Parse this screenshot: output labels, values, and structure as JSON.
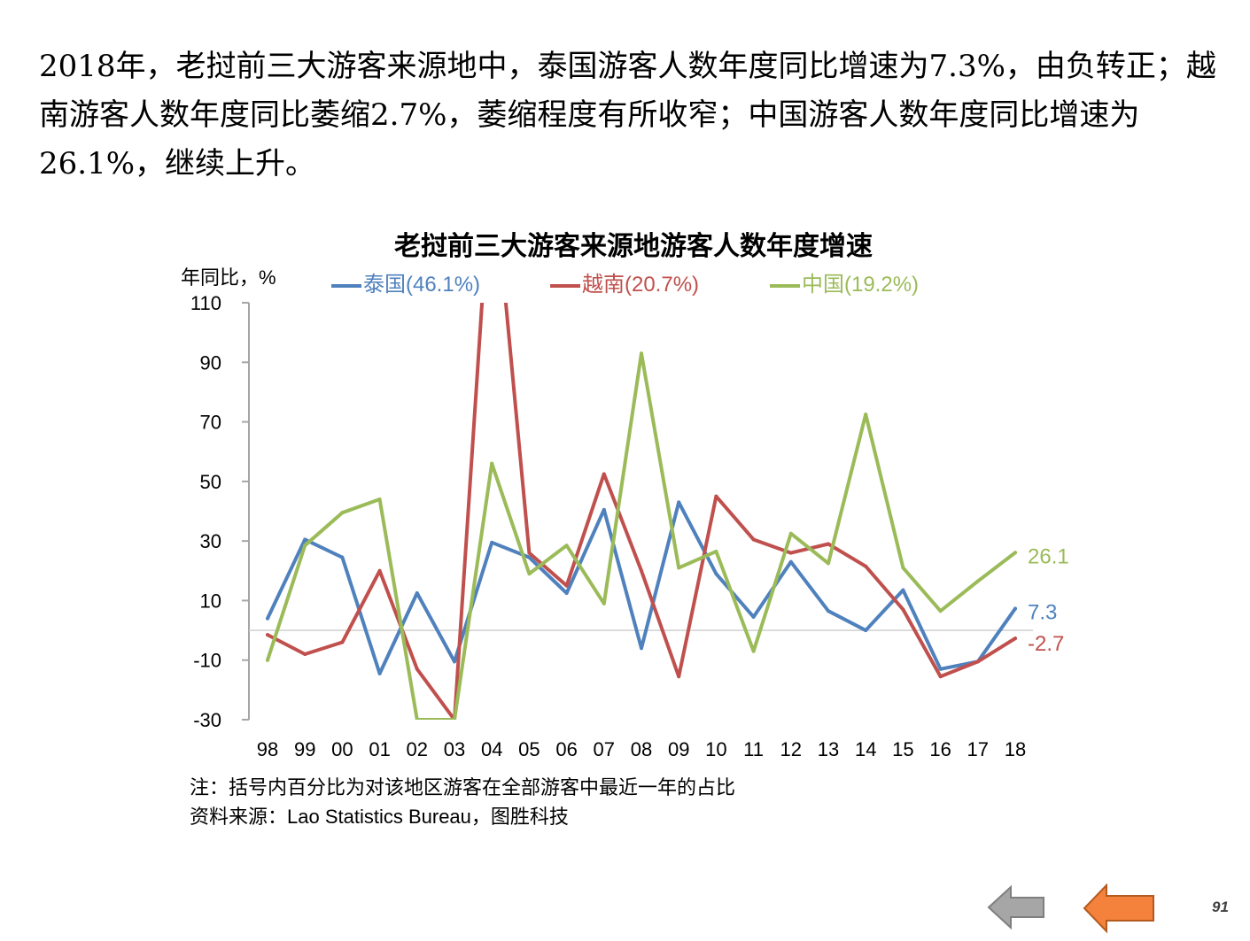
{
  "intro": {
    "text": "2018年，老挝前三大游客来源地中，泰国游客人数年度同比增速为7.3%，由负转正；越南游客人数年度同比萎缩2.7%，萎缩程度有所收窄；中国游客人数年度同比增速为26.1%，继续上升。"
  },
  "chart_data": {
    "type": "line",
    "title": "老挝前三大游客来源地游客人数年度增速",
    "ylabel": "年同比，%",
    "xlabel": "",
    "categories": [
      "98",
      "99",
      "00",
      "01",
      "02",
      "03",
      "04",
      "05",
      "06",
      "07",
      "08",
      "09",
      "10",
      "11",
      "12",
      "13",
      "14",
      "15",
      "16",
      "17",
      "18"
    ],
    "ylim": [
      -30,
      110
    ],
    "yticks": [
      110,
      90,
      70,
      50,
      30,
      10,
      -10,
      -30
    ],
    "legend_position": "top",
    "grid": false,
    "series": [
      {
        "name": "泰国(46.1%)",
        "color": "#4f81bd",
        "values": [
          4,
          30.5,
          24.5,
          -14.5,
          12.5,
          -10.5,
          29.5,
          24.5,
          12.5,
          40.5,
          -6,
          43,
          19,
          4.5,
          23,
          6.5,
          0,
          13.5,
          -13,
          -10.5,
          7.3
        ],
        "end_label": "7.3"
      },
      {
        "name": "越南(20.7%)",
        "color": "#c0504d",
        "values": [
          -1.5,
          -8,
          -4,
          20,
          -13,
          -30,
          160,
          26,
          15,
          52.5,
          20,
          -15.5,
          45,
          30.5,
          26,
          29,
          21.5,
          7,
          -15.5,
          -10.5,
          -2.7
        ],
        "end_label": "-2.7"
      },
      {
        "name": "中国(19.2%)",
        "color": "#9bbb59",
        "values": [
          -10,
          28.5,
          39.5,
          44,
          -30,
          -30,
          56,
          19,
          28.5,
          9,
          93,
          21,
          26.5,
          -7,
          32.5,
          22.5,
          72.5,
          21,
          6.5,
          16.5,
          26.1
        ],
        "end_label": "26.1"
      }
    ]
  },
  "notes": {
    "line1": "注：括号内百分比为对该地区游客在全部游客中最近一年的占比",
    "line2": "资料来源：Lao Statistics Bureau，图胜科技"
  },
  "nav": {
    "prev_icon": "left-arrow-icon",
    "next_icon": "left-arrow-icon",
    "prev_color": "#a6a6a6",
    "next_color": "#f4823c"
  },
  "page_number": "91"
}
